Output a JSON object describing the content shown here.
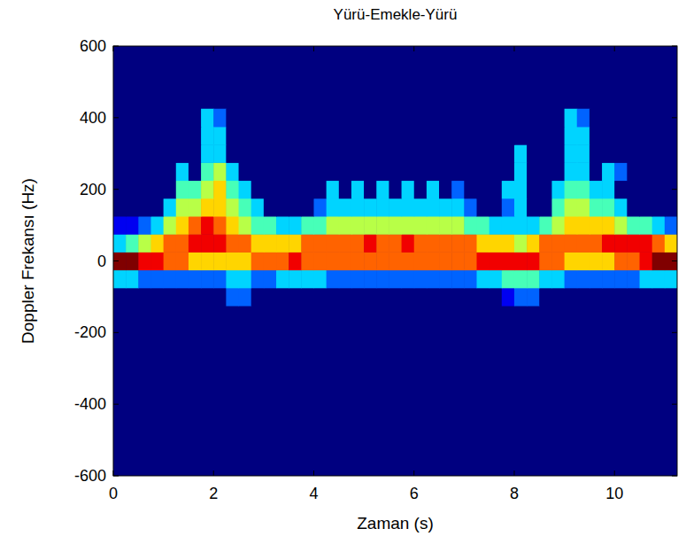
{
  "chart_data": {
    "type": "heatmap",
    "title": "Yürü-Emekle-Yürü",
    "x_label": "Zaman (s)",
    "y_label": "Doppler Frekansı (Hz)",
    "xlim": [
      0,
      11.25
    ],
    "ylim": [
      -600,
      600
    ],
    "xticks": [
      0,
      2,
      4,
      6,
      8,
      10
    ],
    "yticks": [
      -600,
      -400,
      -200,
      0,
      200,
      400,
      600
    ],
    "value_range": [
      0,
      9
    ],
    "x": [
      0.125,
      0.375,
      0.625,
      0.875,
      1.125,
      1.375,
      1.625,
      1.875,
      2.125,
      2.375,
      2.625,
      2.875,
      3.125,
      3.375,
      3.625,
      3.875,
      4.125,
      4.375,
      4.625,
      4.875,
      5.125,
      5.375,
      5.625,
      5.875,
      6.125,
      6.375,
      6.625,
      6.875,
      7.125,
      7.375,
      7.625,
      7.875,
      8.125,
      8.375,
      8.625,
      8.875,
      9.125,
      9.375,
      9.625,
      9.875,
      10.125,
      10.375,
      10.625,
      10.875,
      11.125
    ],
    "y": [
      -100,
      -50,
      0,
      50,
      100,
      150,
      200,
      250,
      300,
      350,
      400
    ],
    "values": [
      [
        0,
        0,
        0,
        0,
        0,
        0,
        0,
        0,
        0,
        2,
        2,
        0,
        0,
        0,
        0,
        0,
        0,
        0,
        0,
        0,
        0,
        0,
        0,
        0,
        0,
        0,
        0,
        0,
        0,
        0,
        0,
        1,
        2,
        2,
        0,
        0,
        0,
        0,
        0,
        0,
        0,
        0,
        0,
        0,
        0
      ],
      [
        3,
        3,
        2,
        2,
        2,
        2,
        2,
        2,
        2,
        3,
        3,
        2,
        2,
        3,
        3,
        3,
        3,
        2,
        2,
        2,
        2,
        2,
        2,
        2,
        2,
        2,
        2,
        2,
        2,
        3,
        3,
        4,
        4,
        4,
        3,
        3,
        2,
        2,
        2,
        2,
        2,
        2,
        3,
        3,
        3
      ],
      [
        9,
        9,
        8,
        8,
        7,
        7,
        6,
        6,
        6,
        6,
        6,
        7,
        7,
        7,
        8,
        7,
        7,
        7,
        7,
        7,
        7,
        7,
        7,
        7,
        7,
        7,
        7,
        7,
        7,
        8,
        8,
        8,
        8,
        8,
        7,
        7,
        6,
        6,
        6,
        6,
        7,
        7,
        8,
        9,
        9
      ],
      [
        3,
        4,
        5,
        6,
        7,
        7,
        8,
        8,
        8,
        7,
        7,
        6,
        6,
        6,
        6,
        7,
        7,
        7,
        7,
        7,
        8,
        7,
        7,
        8,
        7,
        7,
        7,
        7,
        7,
        6,
        6,
        6,
        5,
        6,
        7,
        7,
        7,
        7,
        7,
        8,
        8,
        8,
        8,
        7,
        6
      ],
      [
        1,
        1,
        2,
        3,
        5,
        6,
        7,
        8,
        7,
        6,
        5,
        4,
        4,
        3,
        3,
        4,
        4,
        5,
        5,
        5,
        5,
        5,
        5,
        5,
        5,
        5,
        5,
        5,
        4,
        4,
        3,
        3,
        3,
        3,
        4,
        5,
        6,
        6,
        6,
        6,
        5,
        4,
        4,
        3,
        2
      ],
      [
        0,
        0,
        0,
        0,
        3,
        5,
        5,
        6,
        6,
        5,
        4,
        3,
        0,
        0,
        0,
        0,
        2,
        3,
        3,
        3,
        3,
        3,
        3,
        3,
        3,
        3,
        3,
        3,
        2,
        0,
        0,
        2,
        3,
        0,
        0,
        4,
        5,
        5,
        4,
        4,
        3,
        0,
        0,
        0,
        0
      ],
      [
        0,
        0,
        0,
        0,
        0,
        4,
        4,
        5,
        6,
        4,
        3,
        0,
        0,
        0,
        0,
        0,
        0,
        3,
        0,
        3,
        0,
        3,
        0,
        3,
        0,
        3,
        0,
        2,
        0,
        0,
        0,
        3,
        3,
        0,
        0,
        3,
        4,
        4,
        3,
        3,
        0,
        0,
        0,
        0,
        0
      ],
      [
        0,
        0,
        0,
        0,
        0,
        3,
        0,
        4,
        5,
        3,
        0,
        0,
        0,
        0,
        0,
        0,
        0,
        0,
        0,
        0,
        0,
        0,
        0,
        0,
        0,
        0,
        0,
        0,
        0,
        0,
        0,
        0,
        3,
        0,
        0,
        0,
        3,
        3,
        0,
        3,
        2,
        0,
        0,
        0,
        0
      ],
      [
        0,
        0,
        0,
        0,
        0,
        0,
        0,
        3,
        3,
        0,
        0,
        0,
        0,
        0,
        0,
        0,
        0,
        0,
        0,
        0,
        0,
        0,
        0,
        0,
        0,
        0,
        0,
        0,
        0,
        0,
        0,
        0,
        3,
        0,
        0,
        0,
        3,
        3,
        0,
        0,
        0,
        0,
        0,
        0,
        0
      ],
      [
        0,
        0,
        0,
        0,
        0,
        0,
        0,
        3,
        3,
        0,
        0,
        0,
        0,
        0,
        0,
        0,
        0,
        0,
        0,
        0,
        0,
        0,
        0,
        0,
        0,
        0,
        0,
        0,
        0,
        0,
        0,
        0,
        0,
        0,
        0,
        0,
        3,
        3,
        0,
        0,
        0,
        0,
        0,
        0,
        0
      ],
      [
        0,
        0,
        0,
        0,
        0,
        0,
        0,
        3,
        2,
        0,
        0,
        0,
        0,
        0,
        0,
        0,
        0,
        0,
        0,
        0,
        0,
        0,
        0,
        0,
        0,
        0,
        0,
        0,
        0,
        0,
        0,
        0,
        0,
        0,
        0,
        0,
        3,
        2,
        0,
        0,
        0,
        0,
        0,
        0,
        0
      ]
    ]
  }
}
